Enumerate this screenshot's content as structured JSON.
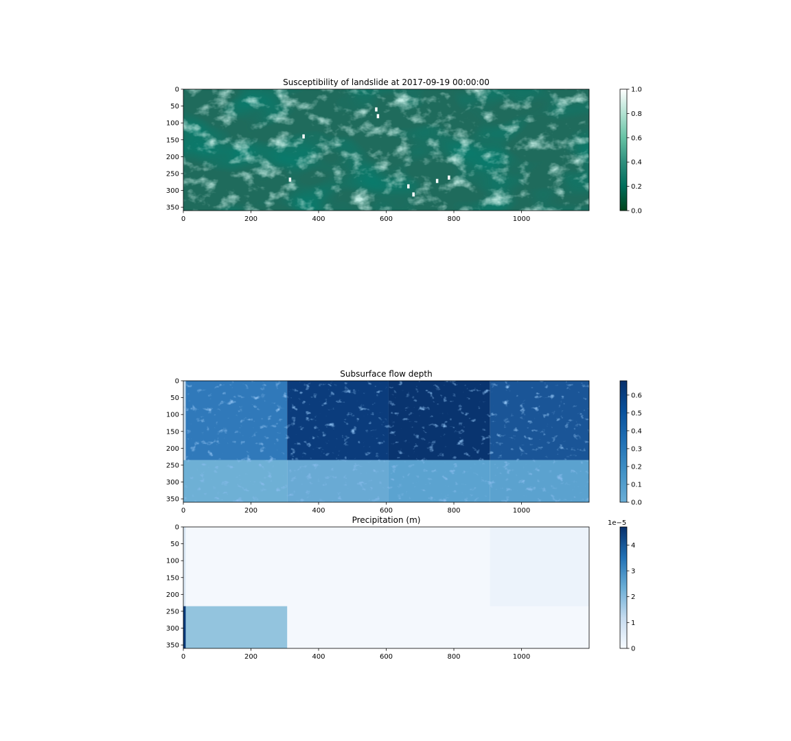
{
  "chart_data": [
    {
      "type": "heatmap",
      "title": "Susceptibility of landslide at 2017-09-19 00:00:00",
      "colormap": "BuGn_r",
      "xlim": [
        0,
        1200
      ],
      "ylim": [
        360,
        0
      ],
      "xticks": [
        "0",
        "200",
        "400",
        "600",
        "800",
        "1000"
      ],
      "yticks": [
        "0",
        "50",
        "100",
        "150",
        "200",
        "250",
        "300",
        "350"
      ],
      "colorbar": {
        "ticks": [
          "0.0",
          "0.2",
          "0.4",
          "0.6",
          "0.8",
          "1.0"
        ],
        "range": [
          0.0,
          1.0
        ],
        "colors": [
          "#00441b",
          "#006d5a",
          "#2f8f7d",
          "#66c2a4",
          "#b2e2d2",
          "#ffffff"
        ]
      },
      "description_values": {
        "background_color": "#1f6b5c",
        "high_susceptibility_patches": [
          {
            "x": 570,
            "y": 60,
            "value": 1.0
          },
          {
            "x": 575,
            "y": 80,
            "value": 1.0
          },
          {
            "x": 355,
            "y": 140,
            "value": 1.0
          },
          {
            "x": 315,
            "y": 268,
            "value": 1.0
          },
          {
            "x": 665,
            "y": 288,
            "value": 1.0
          },
          {
            "x": 680,
            "y": 312,
            "value": 1.0
          },
          {
            "x": 750,
            "y": 272,
            "value": 1.0
          },
          {
            "x": 785,
            "y": 262,
            "value": 1.0
          }
        ]
      }
    },
    {
      "type": "heatmap",
      "title": "Subsurface flow depth",
      "colormap": "Blues",
      "xlim": [
        0,
        1200
      ],
      "ylim": [
        360,
        0
      ],
      "xticks": [
        "0",
        "200",
        "400",
        "600",
        "800",
        "1000"
      ],
      "yticks": [
        "0",
        "50",
        "100",
        "150",
        "200",
        "250",
        "300",
        "350"
      ],
      "colorbar": {
        "ticks": [
          "0.0",
          "0.1",
          "0.2",
          "0.3",
          "0.4",
          "0.5",
          "0.6"
        ],
        "range": [
          0.0,
          0.68
        ],
        "colors": [
          "#6baed6",
          "#4292c6",
          "#2171b5",
          "#08519c",
          "#08306b"
        ]
      },
      "blocks": [
        {
          "x0": 0,
          "x1": 7,
          "y0": 0,
          "y1": 235,
          "value": 0.0,
          "color": "#c9ddef"
        },
        {
          "x0": 7,
          "x1": 307,
          "y0": 0,
          "y1": 235,
          "value": 0.33,
          "color": "#3079ba"
        },
        {
          "x0": 307,
          "x1": 607,
          "y0": 0,
          "y1": 235,
          "value": 0.62,
          "color": "#0b3c7c"
        },
        {
          "x0": 607,
          "x1": 907,
          "y0": 0,
          "y1": 235,
          "value": 0.66,
          "color": "#09346f"
        },
        {
          "x0": 907,
          "x1": 1200,
          "y0": 0,
          "y1": 235,
          "value": 0.45,
          "color": "#1a5597"
        },
        {
          "x0": 0,
          "x1": 307,
          "y0": 235,
          "y1": 360,
          "value": 0.04,
          "color": "#6eb0d5"
        },
        {
          "x0": 307,
          "x1": 607,
          "y0": 235,
          "y1": 360,
          "value": 0.06,
          "color": "#69aad4"
        },
        {
          "x0": 607,
          "x1": 907,
          "y0": 235,
          "y1": 360,
          "value": 0.09,
          "color": "#5ba3d0"
        },
        {
          "x0": 907,
          "x1": 1200,
          "y0": 235,
          "y1": 360,
          "value": 0.09,
          "color": "#5ba2cf"
        }
      ]
    },
    {
      "type": "heatmap",
      "title": "Precipitation (m)",
      "colormap": "Blues",
      "xlim": [
        0,
        1200
      ],
      "ylim": [
        360,
        0
      ],
      "xticks": [
        "0",
        "200",
        "400",
        "600",
        "800",
        "1000"
      ],
      "yticks": [
        "0",
        "50",
        "100",
        "150",
        "200",
        "250",
        "300",
        "350"
      ],
      "colorbar": {
        "ticks": [
          "0",
          "1",
          "2",
          "3",
          "4"
        ],
        "range": [
          0,
          4.7
        ],
        "offset_label": "1e−5",
        "colors": [
          "#f7fbff",
          "#c6dbef",
          "#6baed6",
          "#2171b5",
          "#08306b"
        ]
      },
      "blocks": [
        {
          "x0": 0,
          "x1": 1200,
          "y0": 0,
          "y1": 360,
          "value": 0.1,
          "color": "#f4f8fd"
        },
        {
          "x0": 907,
          "x1": 1200,
          "y0": 0,
          "y1": 235,
          "value": 0.3,
          "color": "#ecf3fb"
        },
        {
          "x0": 0,
          "x1": 7,
          "y0": 0,
          "y1": 235,
          "value": 0.9,
          "color": "#dbe9f6"
        },
        {
          "x0": 7,
          "x1": 307,
          "y0": 235,
          "y1": 360,
          "value": 2.0,
          "color": "#93c4de"
        },
        {
          "x0": 0,
          "x1": 7,
          "y0": 235,
          "y1": 360,
          "value": 4.7,
          "color": "#083a7a"
        }
      ]
    }
  ]
}
